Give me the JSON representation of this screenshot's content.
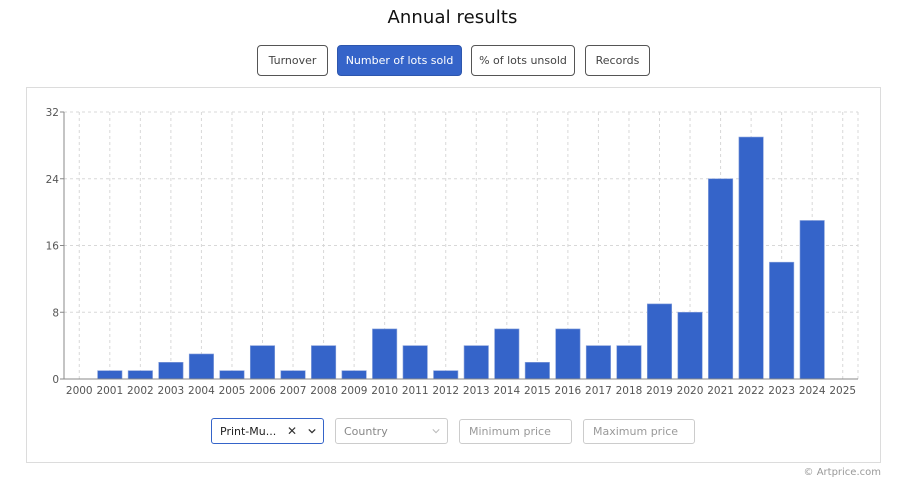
{
  "header": {
    "title": "Annual results"
  },
  "tabs": [
    {
      "label": "Turnover",
      "active": false
    },
    {
      "label": "Number of lots sold",
      "active": true
    },
    {
      "label": "% of lots unsold",
      "active": false
    },
    {
      "label": "Records",
      "active": false
    }
  ],
  "filters": {
    "category": {
      "value": "Print-Mu...",
      "clear_icon": "close-icon",
      "chevron_icon": "chevron-down-icon"
    },
    "country": {
      "placeholder": "Country",
      "chevron_icon": "chevron-down-icon"
    },
    "min_price": {
      "placeholder": "Minimum price",
      "value": ""
    },
    "max_price": {
      "placeholder": "Maximum price",
      "value": ""
    }
  },
  "footer": {
    "credit": "© Artprice.com"
  },
  "colors": {
    "bar": "#3564c9",
    "active_tab": "#3564c9",
    "grid": "#d8d8d8",
    "axis": "#888888"
  },
  "chart_data": {
    "type": "bar",
    "title": "Annual results",
    "subtitle": "Number of lots sold",
    "xlabel": "",
    "ylabel": "",
    "categories": [
      "2000",
      "2001",
      "2002",
      "2003",
      "2004",
      "2005",
      "2006",
      "2007",
      "2008",
      "2009",
      "2010",
      "2011",
      "2012",
      "2013",
      "2014",
      "2015",
      "2016",
      "2017",
      "2018",
      "2019",
      "2020",
      "2021",
      "2022",
      "2023",
      "2024",
      "2025"
    ],
    "values": [
      0,
      1,
      1,
      2,
      3,
      1,
      4,
      1,
      4,
      1,
      6,
      4,
      1,
      4,
      6,
      2,
      6,
      4,
      4,
      9,
      8,
      24,
      29,
      14,
      19,
      0
    ],
    "yticks": [
      0,
      8,
      16,
      24,
      32
    ],
    "ylim": [
      0,
      32
    ],
    "grid": true,
    "legend": null
  }
}
